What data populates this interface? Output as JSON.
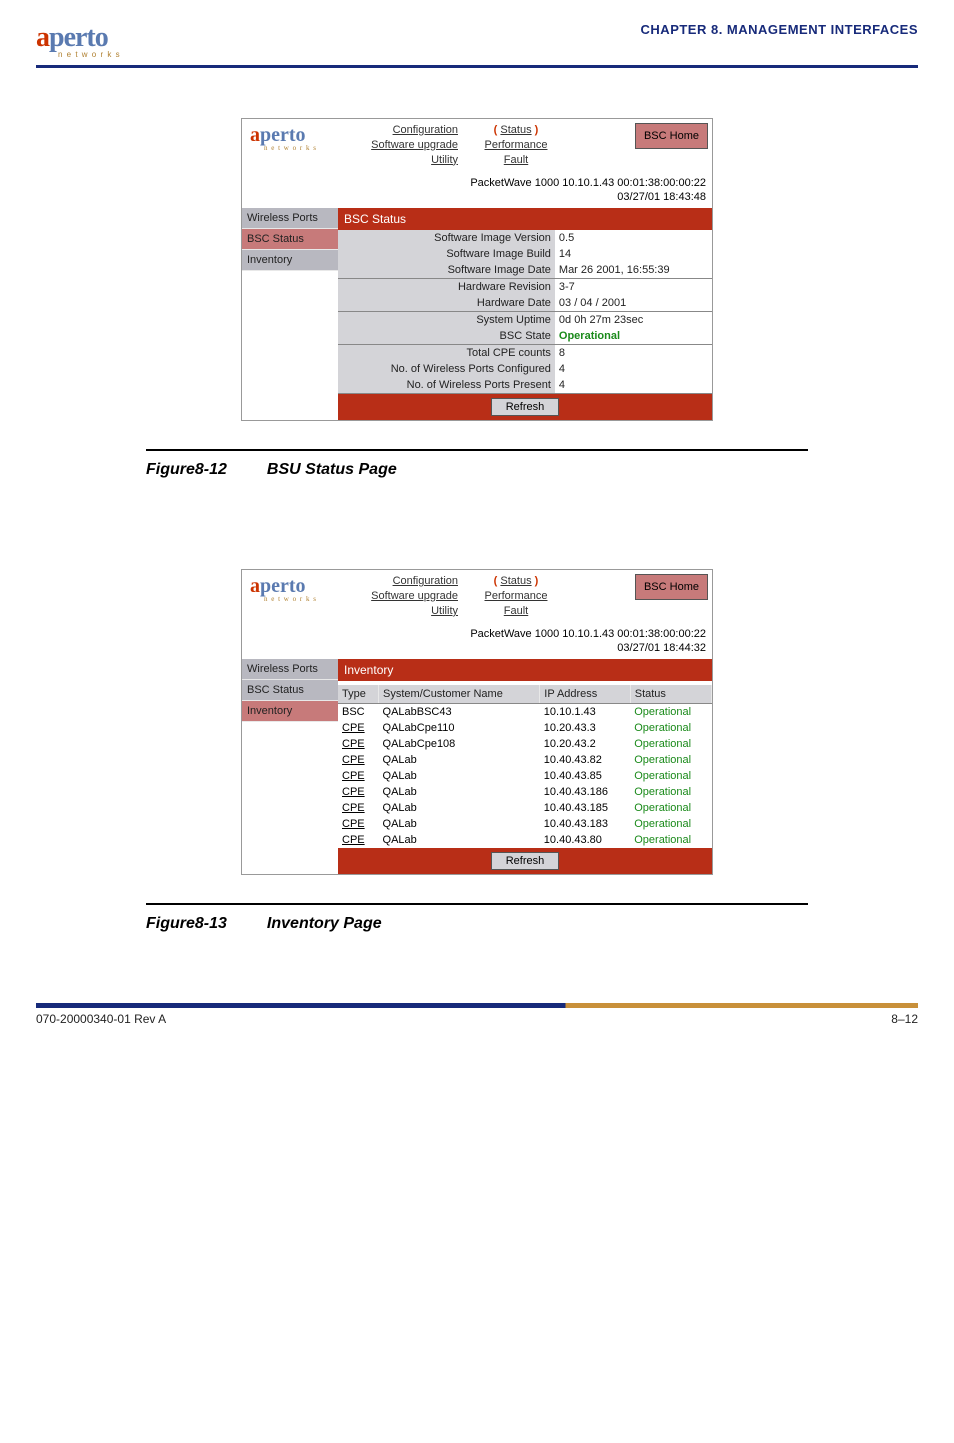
{
  "header": {
    "logo_a": "a",
    "logo_rest": "perto",
    "logo_sub": "n e t w o r k s",
    "chapter": "CHAPTER 8.   MANAGEMENT  INTERFACES"
  },
  "nav": {
    "left": [
      "Configuration",
      "Software upgrade",
      "Utility"
    ],
    "right": [
      "Status",
      "Performance",
      "Fault"
    ],
    "bsc_home": "BSC Home"
  },
  "fig12": {
    "info_line1": "PacketWave 1000    10.10.1.43    00:01:38:00:00:22",
    "info_line2": "03/27/01    18:43:48",
    "sidebar": [
      "Wireless Ports",
      "BSC Status",
      "Inventory"
    ],
    "active_index": 1,
    "section_title": "BSC Status",
    "groups": [
      [
        {
          "label": "Software Image Version",
          "value": "0.5"
        },
        {
          "label": "Software Image Build",
          "value": "14"
        },
        {
          "label": "Software Image Date",
          "value": "Mar 26 2001, 16:55:39"
        }
      ],
      [
        {
          "label": "Hardware Revision",
          "value": "3-7"
        },
        {
          "label": "Hardware Date",
          "value": "03 / 04 / 2001"
        }
      ],
      [
        {
          "label": "System Uptime",
          "value": "0d 0h 27m 23sec"
        },
        {
          "label": "BSC State",
          "value": "Operational",
          "green": true
        }
      ],
      [
        {
          "label": "Total CPE counts",
          "value": "8"
        },
        {
          "label": "No. of Wireless Ports Configured",
          "value": "4"
        },
        {
          "label": "No. of Wireless Ports Present",
          "value": "4"
        }
      ]
    ],
    "refresh": "Refresh",
    "caption_num": "Figure8-12",
    "caption_text": "BSU Status Page"
  },
  "fig13": {
    "info_line1": "PacketWave 1000    10.10.1.43    00:01:38:00:00:22",
    "info_line2": "03/27/01    18:44:32",
    "sidebar": [
      "Wireless Ports",
      "BSC Status",
      "Inventory"
    ],
    "active_index": 2,
    "section_title": "Inventory",
    "columns": [
      "Type",
      "System/Customer Name",
      "IP Address",
      "Status"
    ],
    "rows": [
      {
        "type": "BSC",
        "name": "QALabBSC43",
        "ip": "10.10.1.43",
        "status": "Operational"
      },
      {
        "type": "CPE",
        "name": "QALabCpe110",
        "ip": "10.20.43.3",
        "status": "Operational"
      },
      {
        "type": "CPE",
        "name": "QALabCpe108",
        "ip": "10.20.43.2",
        "status": "Operational"
      },
      {
        "type": "CPE",
        "name": "QALab",
        "ip": "10.40.43.82",
        "status": "Operational"
      },
      {
        "type": "CPE",
        "name": "QALab",
        "ip": "10.40.43.85",
        "status": "Operational"
      },
      {
        "type": "CPE",
        "name": "QALab",
        "ip": "10.40.43.186",
        "status": "Operational"
      },
      {
        "type": "CPE",
        "name": "QALab",
        "ip": "10.40.43.185",
        "status": "Operational"
      },
      {
        "type": "CPE",
        "name": "QALab",
        "ip": "10.40.43.183",
        "status": "Operational"
      },
      {
        "type": "CPE",
        "name": "QALab",
        "ip": "10.40.43.80",
        "status": "Operational"
      }
    ],
    "refresh": "Refresh",
    "caption_num": "Figure8-13",
    "caption_text": "Inventory Page"
  },
  "footer": {
    "left": "070-20000340-01 Rev A",
    "right": "8–12"
  },
  "colors": {
    "header_rule": "#172a7a",
    "section_bar": "#b82e17",
    "sidebar_bg": "#b8b8c0",
    "sidebar_active": "#c77a7a",
    "green": "#1a8a1a"
  }
}
